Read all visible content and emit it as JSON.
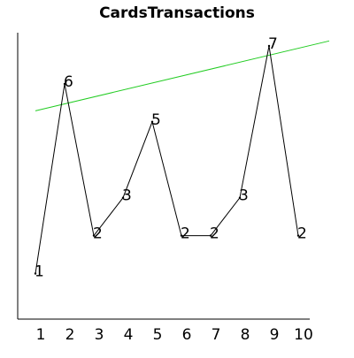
{
  "chart_data": {
    "type": "line",
    "title": "CardsTransactions",
    "xlabel": "",
    "ylabel": "",
    "x": [
      1,
      2,
      3,
      4,
      5,
      6,
      7,
      8,
      9,
      10
    ],
    "series": [
      {
        "values": [
          1,
          6,
          2,
          3,
          5,
          2,
          2,
          3,
          7,
          2
        ],
        "color": "#000000"
      }
    ],
    "trendline": {
      "start": 5.29,
      "end": 6.94,
      "color": "#22cc22"
    },
    "x_tick_labels": [
      "1",
      "2",
      "3",
      "4",
      "5",
      "6",
      "7",
      "8",
      "9",
      "10"
    ],
    "data_labels": [
      "1",
      "6",
      "2",
      "3",
      "5",
      "2",
      "2",
      "3",
      "7",
      "2"
    ],
    "ylim": [
      -0.2,
      7.35
    ],
    "grid": false,
    "legend": false
  }
}
